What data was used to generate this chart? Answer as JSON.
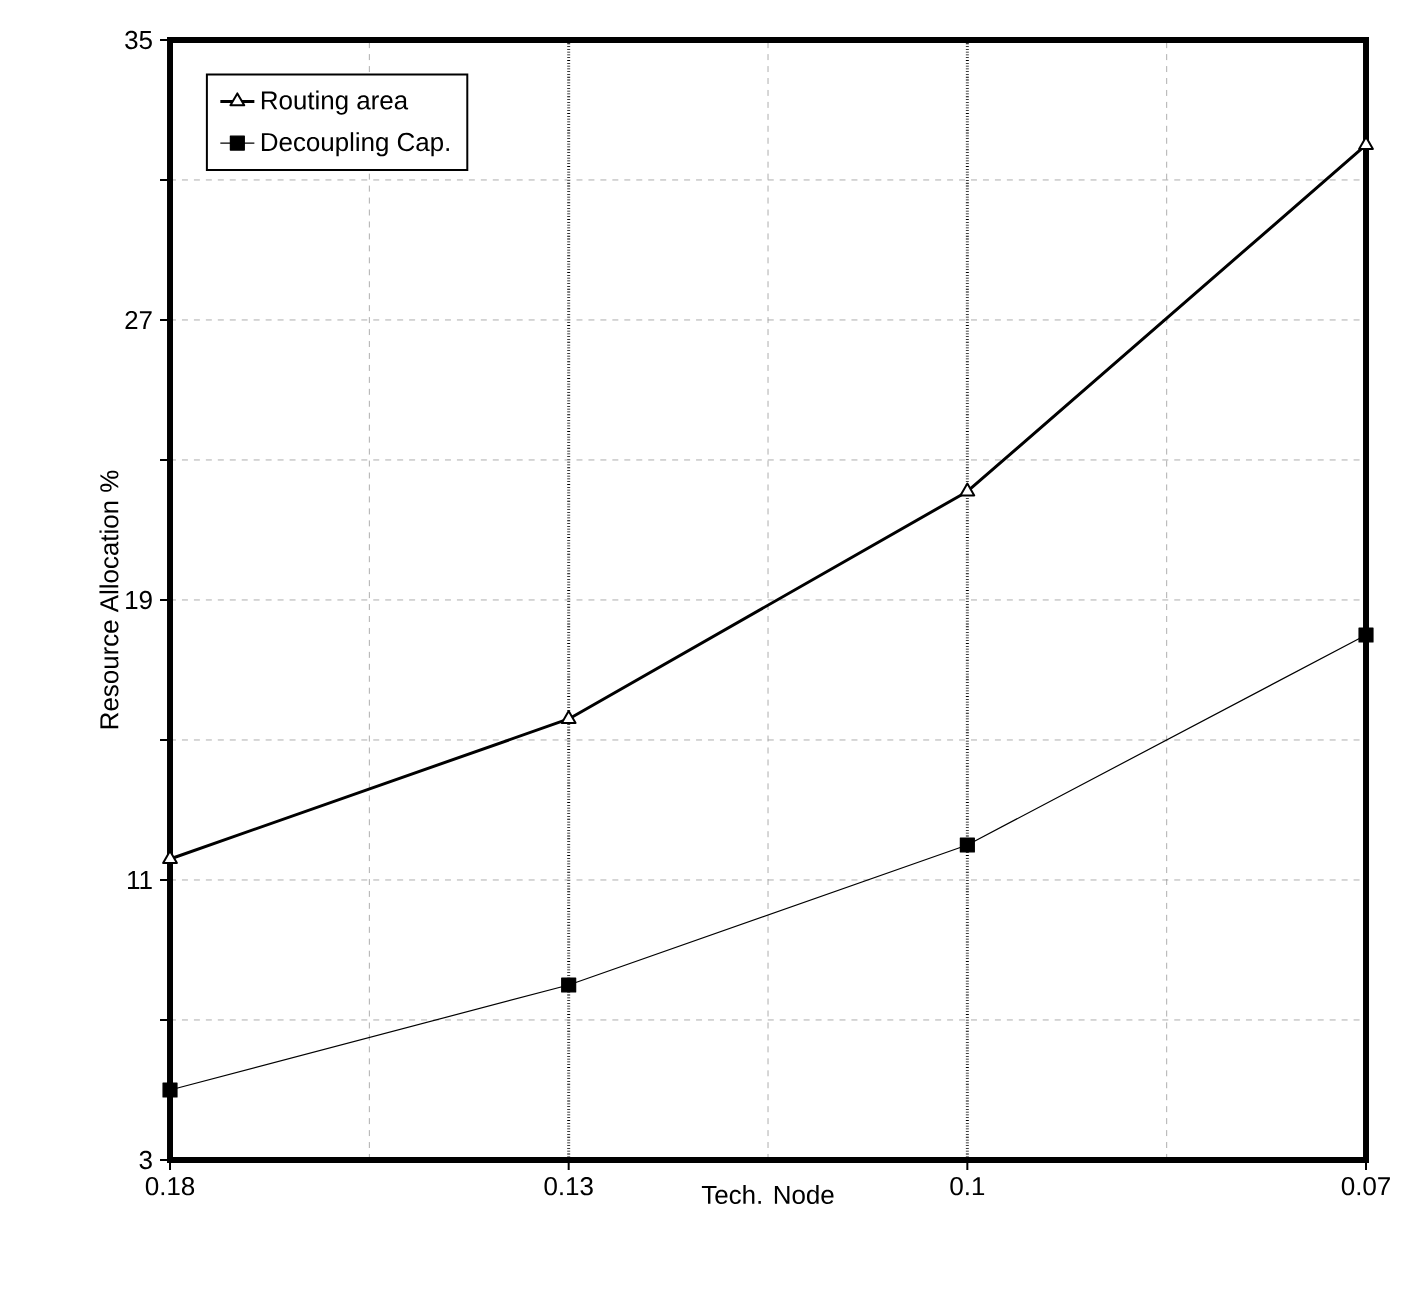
{
  "chart_data": {
    "type": "line",
    "xlabel": "Tech. Node",
    "ylabel": "Resource Allocation %",
    "categories": [
      "0.18",
      "0.13",
      "0.1",
      "0.07"
    ],
    "series": [
      {
        "name": "Routing area",
        "color": "#000000",
        "marker": "triangle",
        "values": [
          11.6,
          15.6,
          22.1,
          32.0
        ]
      },
      {
        "name": "Decoupling Cap.",
        "color": "#000000",
        "marker": "square",
        "values": [
          5.0,
          8.0,
          12.0,
          18.0
        ]
      }
    ],
    "ylim": [
      3,
      35
    ],
    "yticks": [
      3,
      {
        "value": 7,
        "label": null
      },
      11,
      {
        "value": 15,
        "label": null
      },
      19,
      {
        "value": 23,
        "label": null
      },
      27,
      {
        "value": 31,
        "label": null
      },
      35
    ],
    "grid": true,
    "legend": "top left",
    "line_style": "solid"
  }
}
